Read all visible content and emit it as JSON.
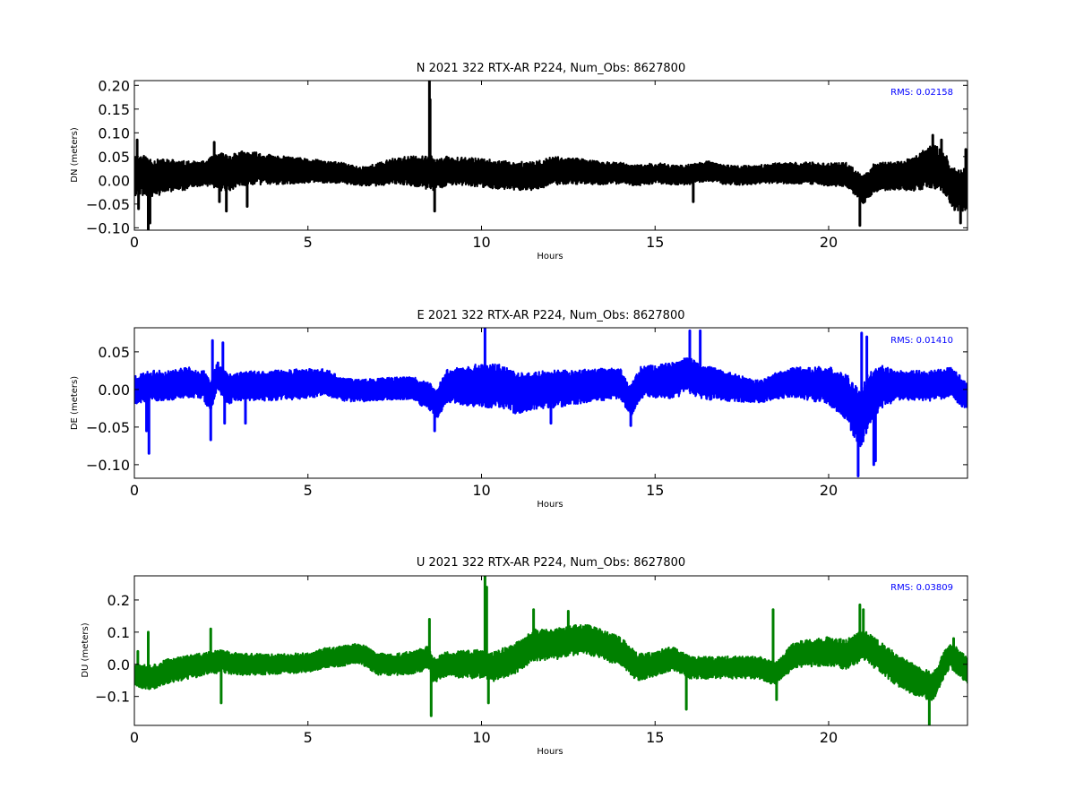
{
  "chart_data": [
    {
      "type": "line",
      "component": "N",
      "title": "N 2021 322 RTX-AR  P224, Num_Obs: 8627800",
      "xlabel": "Hours",
      "ylabel": "DN (meters)",
      "xlim": [
        0,
        24
      ],
      "ylim": [
        -0.105,
        0.21
      ],
      "xticks": [
        0,
        5,
        10,
        15,
        20
      ],
      "xtick_labels": [
        "0",
        "5",
        "10",
        "15",
        "20"
      ],
      "yticks": [
        -0.1,
        -0.05,
        0.0,
        0.05,
        0.1,
        0.15,
        0.2
      ],
      "ytick_labels": [
        "−0.10",
        "−0.05",
        "0.00",
        "0.05",
        "0.10",
        "0.15",
        "0.20"
      ],
      "color": "#000000",
      "rms_label": "RMS:  0.02158",
      "grid": false,
      "baseline": [
        [
          0,
          0.01
        ],
        [
          0.3,
          0.01
        ],
        [
          0.6,
          0.005
        ],
        [
          1,
          0.01
        ],
        [
          1.5,
          0.01
        ],
        [
          2,
          0.015
        ],
        [
          2.4,
          0.02
        ],
        [
          2.7,
          0.015
        ],
        [
          3,
          0.025
        ],
        [
          3.5,
          0.025
        ],
        [
          4,
          0.022
        ],
        [
          5,
          0.02
        ],
        [
          5.5,
          0.018
        ],
        [
          6,
          0.015
        ],
        [
          6.5,
          0.008
        ],
        [
          7,
          0.012
        ],
        [
          7.5,
          0.02
        ],
        [
          8,
          0.02
        ],
        [
          8.5,
          0.015
        ],
        [
          8.7,
          0.01
        ],
        [
          9,
          0.02
        ],
        [
          9.5,
          0.02
        ],
        [
          10,
          0.015
        ],
        [
          10.5,
          0.012
        ],
        [
          11,
          0.01
        ],
        [
          11.5,
          0.008
        ],
        [
          12,
          0.02
        ],
        [
          12.5,
          0.02
        ],
        [
          13,
          0.018
        ],
        [
          13.5,
          0.015
        ],
        [
          14,
          0.015
        ],
        [
          14.5,
          0.01
        ],
        [
          15,
          0.015
        ],
        [
          15.5,
          0.012
        ],
        [
          16,
          0.012
        ],
        [
          16.5,
          0.02
        ],
        [
          17,
          0.012
        ],
        [
          17.5,
          0.01
        ],
        [
          18,
          0.012
        ],
        [
          18.5,
          0.015
        ],
        [
          19,
          0.015
        ],
        [
          19.5,
          0.015
        ],
        [
          20,
          0.012
        ],
        [
          20.5,
          0.012
        ],
        [
          21,
          -0.02
        ],
        [
          21.3,
          0.005
        ],
        [
          21.5,
          0.008
        ],
        [
          22,
          0.01
        ],
        [
          22.5,
          0.015
        ],
        [
          23,
          0.03
        ],
        [
          23.3,
          0.02
        ],
        [
          23.6,
          -0.02
        ],
        [
          24,
          -0.02
        ]
      ],
      "noise": [
        [
          0,
          0.045
        ],
        [
          2,
          0.025
        ],
        [
          2.5,
          0.04
        ],
        [
          5,
          0.025
        ],
        [
          6.5,
          0.02
        ],
        [
          8.5,
          0.035
        ],
        [
          9,
          0.03
        ],
        [
          12,
          0.03
        ],
        [
          14,
          0.022
        ],
        [
          18,
          0.02
        ],
        [
          20.5,
          0.025
        ],
        [
          21,
          0.03
        ],
        [
          22,
          0.03
        ],
        [
          23,
          0.045
        ],
        [
          24,
          0.045
        ]
      ],
      "spikes": [
        [
          0.08,
          0.085
        ],
        [
          0.12,
          -0.06
        ],
        [
          0.4,
          -0.105
        ],
        [
          0.45,
          -0.09
        ],
        [
          2.3,
          0.08
        ],
        [
          2.45,
          -0.045
        ],
        [
          2.65,
          -0.065
        ],
        [
          3.25,
          -0.055
        ],
        [
          8.5,
          0.21
        ],
        [
          8.52,
          0.17
        ],
        [
          8.55,
          0.05
        ],
        [
          8.65,
          -0.065
        ],
        [
          16.1,
          -0.045
        ],
        [
          20.9,
          -0.095
        ],
        [
          23.0,
          0.095
        ],
        [
          23.25,
          0.085
        ],
        [
          23.8,
          -0.09
        ],
        [
          23.95,
          0.065
        ]
      ]
    },
    {
      "type": "line",
      "component": "E",
      "title": "E 2021 322 RTX-AR  P224, Num_Obs: 8627800",
      "xlabel": "Hours",
      "ylabel": "DE (meters)",
      "xlim": [
        0,
        24
      ],
      "ylim": [
        -0.118,
        0.082
      ],
      "xticks": [
        0,
        5,
        10,
        15,
        20
      ],
      "xtick_labels": [
        "0",
        "5",
        "10",
        "15",
        "20"
      ],
      "yticks": [
        -0.1,
        -0.05,
        0.0,
        0.05
      ],
      "ytick_labels": [
        "−0.10",
        "−0.05",
        "0.00",
        "0.05"
      ],
      "color": "#0000ff",
      "rms_label": "RMS:  0.01410",
      "grid": false,
      "baseline": [
        [
          0,
          0.0
        ],
        [
          0.5,
          0.005
        ],
        [
          1,
          0.005
        ],
        [
          1.5,
          0.01
        ],
        [
          2,
          0.005
        ],
        [
          2.2,
          -0.01
        ],
        [
          2.4,
          0.02
        ],
        [
          2.7,
          0.0
        ],
        [
          3,
          0.005
        ],
        [
          4,
          0.005
        ],
        [
          5,
          0.008
        ],
        [
          5.5,
          0.01
        ],
        [
          6,
          0.0
        ],
        [
          6.5,
          -0.002
        ],
        [
          7,
          0.0
        ],
        [
          8,
          0.002
        ],
        [
          8.5,
          -0.01
        ],
        [
          8.7,
          -0.02
        ],
        [
          9,
          0.005
        ],
        [
          10,
          0.005
        ],
        [
          10.5,
          0.005
        ],
        [
          11,
          -0.005
        ],
        [
          12,
          0.0
        ],
        [
          13,
          0.005
        ],
        [
          14,
          0.008
        ],
        [
          14.3,
          -0.015
        ],
        [
          14.6,
          0.01
        ],
        [
          15,
          0.01
        ],
        [
          15.5,
          0.012
        ],
        [
          16,
          0.02
        ],
        [
          16.3,
          0.01
        ],
        [
          17,
          0.005
        ],
        [
          18,
          -0.003
        ],
        [
          18.5,
          0.005
        ],
        [
          19,
          0.01
        ],
        [
          20,
          0.005
        ],
        [
          20.5,
          -0.01
        ],
        [
          20.9,
          -0.04
        ],
        [
          21.2,
          -0.01
        ],
        [
          21.5,
          0.005
        ],
        [
          22,
          0.005
        ],
        [
          23,
          0.005
        ],
        [
          23.5,
          0.01
        ],
        [
          24,
          -0.01
        ]
      ],
      "noise": [
        [
          0,
          0.02
        ],
        [
          2,
          0.02
        ],
        [
          5,
          0.02
        ],
        [
          6,
          0.015
        ],
        [
          8,
          0.015
        ],
        [
          10,
          0.03
        ],
        [
          12,
          0.025
        ],
        [
          14,
          0.02
        ],
        [
          16,
          0.025
        ],
        [
          18,
          0.015
        ],
        [
          20,
          0.025
        ],
        [
          21,
          0.04
        ],
        [
          22,
          0.02
        ],
        [
          24,
          0.02
        ]
      ],
      "spikes": [
        [
          0.35,
          -0.055
        ],
        [
          0.42,
          -0.085
        ],
        [
          2.2,
          -0.067
        ],
        [
          2.25,
          0.065
        ],
        [
          2.55,
          0.062
        ],
        [
          2.6,
          -0.045
        ],
        [
          3.2,
          -0.045
        ],
        [
          8.65,
          -0.055
        ],
        [
          10.1,
          0.082
        ],
        [
          12.0,
          -0.045
        ],
        [
          14.3,
          -0.048
        ],
        [
          16.0,
          0.078
        ],
        [
          16.3,
          0.078
        ],
        [
          20.85,
          -0.115
        ],
        [
          20.95,
          0.075
        ],
        [
          21.1,
          0.07
        ],
        [
          21.3,
          -0.1
        ],
        [
          21.35,
          -0.095
        ]
      ]
    },
    {
      "type": "line",
      "component": "U",
      "title": "U 2021 322 RTX-AR  P224, Num_Obs: 8627800",
      "xlabel": "Hours",
      "ylabel": "DU (meters)",
      "xlim": [
        0,
        24
      ],
      "ylim": [
        -0.19,
        0.275
      ],
      "xticks": [
        0,
        5,
        10,
        15,
        20
      ],
      "xtick_labels": [
        "0",
        "5",
        "10",
        "15",
        "20"
      ],
      "yticks": [
        -0.1,
        0.0,
        0.1,
        0.2
      ],
      "ytick_labels": [
        "−0.1",
        "0.0",
        "0.1",
        "0.2"
      ],
      "color": "#008000",
      "rms_label": "RMS:  0.03809",
      "grid": false,
      "baseline": [
        [
          0,
          -0.03
        ],
        [
          0.5,
          -0.04
        ],
        [
          1,
          -0.02
        ],
        [
          1.5,
          -0.01
        ],
        [
          2,
          0.0
        ],
        [
          2.5,
          0.01
        ],
        [
          3,
          0.0
        ],
        [
          4,
          0.0
        ],
        [
          5,
          0.005
        ],
        [
          5.5,
          0.02
        ],
        [
          6,
          0.025
        ],
        [
          6.5,
          0.035
        ],
        [
          7,
          0.0
        ],
        [
          7.5,
          0.0
        ],
        [
          8,
          0.005
        ],
        [
          8.5,
          0.02
        ],
        [
          8.6,
          -0.02
        ],
        [
          9,
          0.0
        ],
        [
          10,
          0.0
        ],
        [
          10.3,
          -0.01
        ],
        [
          11,
          0.02
        ],
        [
          11.5,
          0.06
        ],
        [
          12,
          0.06
        ],
        [
          12.5,
          0.07
        ],
        [
          13,
          0.08
        ],
        [
          13.5,
          0.06
        ],
        [
          14,
          0.04
        ],
        [
          14.5,
          -0.01
        ],
        [
          15,
          0.0
        ],
        [
          15.5,
          0.02
        ],
        [
          16,
          -0.01
        ],
        [
          17,
          -0.01
        ],
        [
          18,
          -0.01
        ],
        [
          18.5,
          -0.03
        ],
        [
          19,
          0.03
        ],
        [
          20,
          0.04
        ],
        [
          20.5,
          0.03
        ],
        [
          21,
          0.06
        ],
        [
          21.5,
          0.02
        ],
        [
          22,
          -0.02
        ],
        [
          22.5,
          -0.05
        ],
        [
          23,
          -0.07
        ],
        [
          23.5,
          0.03
        ],
        [
          24,
          -0.02
        ]
      ],
      "noise": [
        [
          0,
          0.04
        ],
        [
          5,
          0.03
        ],
        [
          8,
          0.035
        ],
        [
          10,
          0.045
        ],
        [
          12,
          0.05
        ],
        [
          14,
          0.045
        ],
        [
          16,
          0.035
        ],
        [
          18,
          0.035
        ],
        [
          20,
          0.045
        ],
        [
          22,
          0.05
        ],
        [
          24,
          0.04
        ]
      ],
      "spikes": [
        [
          0.1,
          0.04
        ],
        [
          0.4,
          0.1
        ],
        [
          2.2,
          0.11
        ],
        [
          2.5,
          -0.12
        ],
        [
          8.5,
          0.14
        ],
        [
          8.55,
          -0.16
        ],
        [
          10.1,
          0.275
        ],
        [
          10.15,
          0.24
        ],
        [
          10.2,
          -0.12
        ],
        [
          11.5,
          0.17
        ],
        [
          12.5,
          0.165
        ],
        [
          15.9,
          -0.14
        ],
        [
          18.4,
          0.17
        ],
        [
          18.5,
          -0.11
        ],
        [
          20.9,
          0.185
        ],
        [
          21.0,
          0.17
        ],
        [
          22.9,
          -0.19
        ],
        [
          23.6,
          0.08
        ]
      ]
    }
  ]
}
